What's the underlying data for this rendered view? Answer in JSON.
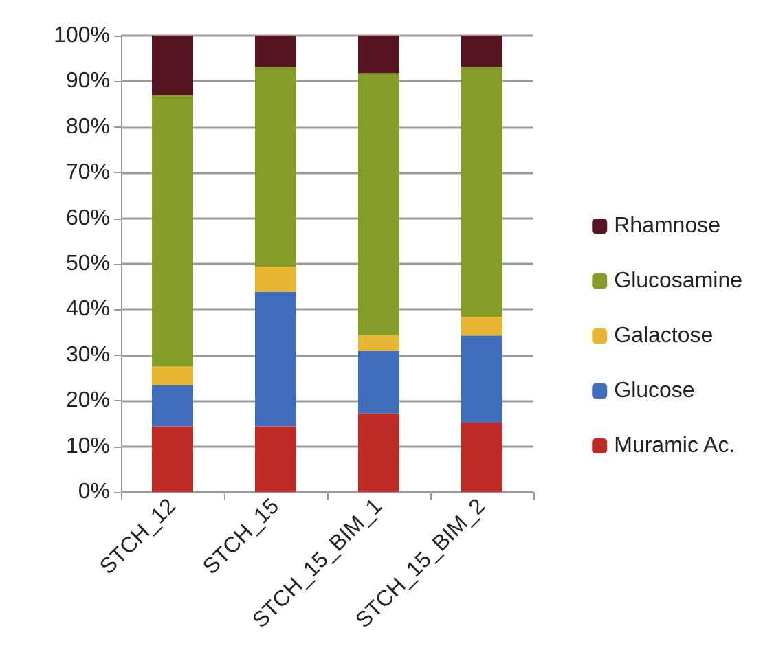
{
  "chart_data": {
    "type": "bar",
    "stacked": true,
    "categories": [
      "STCH_12",
      "STCH_15",
      "STCH_15_BIM_1",
      "STCH_15_BIM_2"
    ],
    "series": [
      {
        "name": "Muramic Ac.",
        "color": "#be2a26",
        "values": [
          14.4,
          14.4,
          17.2,
          15.2
        ]
      },
      {
        "name": "Glucose",
        "color": "#3f6cbd",
        "values": [
          9.0,
          29.5,
          13.7,
          19.1
        ]
      },
      {
        "name": "Galactose",
        "color": "#e9b631",
        "values": [
          4.1,
          5.5,
          3.4,
          4.1
        ]
      },
      {
        "name": "Glucosamine",
        "color": "#849d29",
        "values": [
          59.5,
          43.8,
          57.5,
          54.8
        ]
      },
      {
        "name": "Rhamnose",
        "color": "#55141f",
        "values": [
          13.0,
          6.8,
          8.2,
          6.8
        ]
      }
    ],
    "ylim": [
      0,
      100
    ],
    "yticks": [
      {
        "value": 0,
        "label": "0%"
      },
      {
        "value": 10,
        "label": "10%"
      },
      {
        "value": 20,
        "label": "20%"
      },
      {
        "value": 30,
        "label": "30%"
      },
      {
        "value": 40,
        "label": "40%"
      },
      {
        "value": 50,
        "label": "50%"
      },
      {
        "value": 60,
        "label": "60%"
      },
      {
        "value": 70,
        "label": "70%"
      },
      {
        "value": 80,
        "label": "80%"
      },
      {
        "value": 90,
        "label": "90%"
      },
      {
        "value": 100,
        "label": "100%"
      }
    ],
    "grid": "y",
    "legend": "right"
  }
}
